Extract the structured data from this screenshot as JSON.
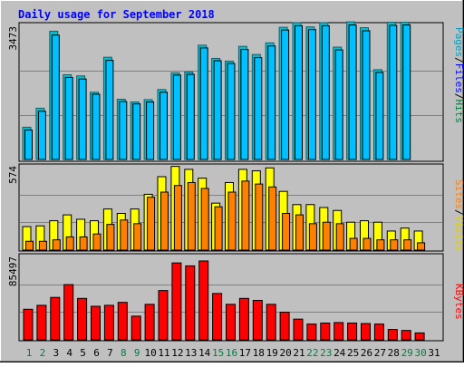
{
  "chart_data": [
    {
      "type": "bar",
      "title": "Daily usage for September 2018",
      "panel": "pages-files-hits",
      "categories": [
        "1",
        "2",
        "3",
        "4",
        "5",
        "6",
        "7",
        "8",
        "9",
        "10",
        "11",
        "12",
        "13",
        "14",
        "15",
        "16",
        "17",
        "18",
        "19",
        "20",
        "21",
        "22",
        "23",
        "24",
        "25",
        "26",
        "27",
        "28",
        "29",
        "30",
        "31"
      ],
      "weekend_days": [
        "1",
        "2",
        "8",
        "9",
        "15",
        "16",
        "22",
        "23",
        "29",
        "30"
      ],
      "ymax_label": "3473",
      "ylim": [
        0,
        3473
      ],
      "grid": true,
      "right_label": [
        "Pages",
        "/",
        "Files",
        "/",
        "Hits"
      ],
      "right_label_colors": [
        "#00a0c0",
        "#000000",
        "#0000ff",
        "#000000",
        "#008040"
      ],
      "series": [
        {
          "name": "Hits",
          "color": "#00c0d0",
          "outline": "#1b5e6a",
          "values": [
            830,
            1320,
            3300,
            2180,
            2150,
            1730,
            2630,
            1550,
            1480,
            1540,
            1800,
            2230,
            2250,
            2940,
            2600,
            2530,
            2910,
            2700,
            3000,
            3400,
            3520,
            3410,
            3520,
            2890,
            3540,
            3390,
            2310,
            3530,
            3530,
            null,
            null
          ]
        },
        {
          "name": "Files",
          "color": "#0000ff",
          "values": [
            760,
            1240,
            3200,
            2110,
            2070,
            1680,
            2550,
            1490,
            1430,
            1480,
            1730,
            2170,
            2190,
            2870,
            2540,
            2470,
            2830,
            2620,
            2920,
            3330,
            3440,
            3340,
            3440,
            2820,
            3460,
            3310,
            2240,
            3450,
            3460,
            null,
            null
          ]
        },
        {
          "name": "Pages",
          "color": "#00c0ff",
          "values": [
            760,
            1240,
            3200,
            2110,
            2070,
            1680,
            2550,
            1490,
            1430,
            1480,
            1730,
            2170,
            2190,
            2870,
            2540,
            2470,
            2830,
            2620,
            2920,
            3330,
            3440,
            3340,
            3440,
            2820,
            3460,
            3310,
            2240,
            3450,
            3460,
            null,
            null
          ]
        }
      ]
    },
    {
      "type": "bar",
      "panel": "visits-sites",
      "ymax_label": "574",
      "ylim": [
        0,
        574
      ],
      "grid": true,
      "right_label": [
        "Sites",
        "/",
        "Visits"
      ],
      "right_label_colors": [
        "#ff8000",
        "#000000",
        "#e0d000"
      ],
      "series": [
        {
          "name": "Visits",
          "color": "#ffff00",
          "values": [
            160,
            165,
            200,
            240,
            210,
            200,
            280,
            250,
            280,
            380,
            500,
            570,
            550,
            490,
            320,
            460,
            550,
            540,
            560,
            400,
            310,
            310,
            290,
            270,
            190,
            200,
            190,
            130,
            150,
            130,
            null
          ]
        },
        {
          "name": "Sites",
          "color": "#ff8000",
          "values": [
            60,
            60,
            70,
            90,
            90,
            110,
            175,
            205,
            180,
            360,
            395,
            440,
            460,
            420,
            295,
            395,
            470,
            450,
            430,
            250,
            240,
            180,
            190,
            180,
            80,
            80,
            70,
            70,
            70,
            50,
            null
          ]
        }
      ]
    },
    {
      "type": "bar",
      "panel": "kbytes",
      "ymax_label": "85497",
      "ylim": [
        0,
        85497
      ],
      "grid": true,
      "right_label": [
        "KBytes"
      ],
      "right_label_colors": [
        "#ff0000"
      ],
      "series": [
        {
          "name": "KBytes",
          "color": "#ff0000",
          "values": [
            31000,
            35000,
            43000,
            56000,
            42000,
            34000,
            35000,
            38000,
            24000,
            36000,
            50000,
            78000,
            75000,
            80000,
            47000,
            36000,
            42000,
            40000,
            36000,
            28000,
            21000,
            16000,
            17000,
            17500,
            17000,
            16500,
            16000,
            10500,
            9500,
            7000,
            null
          ]
        }
      ]
    }
  ]
}
